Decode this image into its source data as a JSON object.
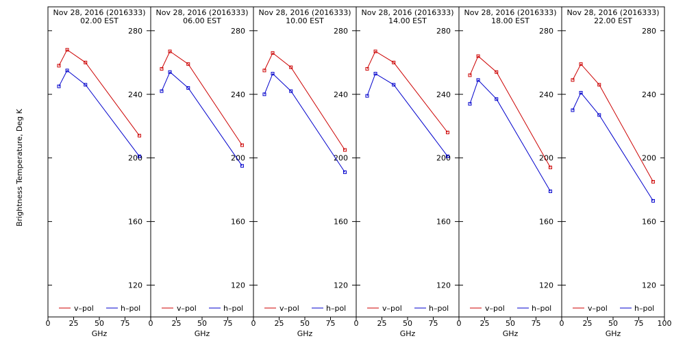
{
  "figure": {
    "ylabel": "Brightness Temperature, Deg K",
    "xlabel": "GHz",
    "legend": {
      "v_label": "v–pol",
      "h_label": "h–pol"
    },
    "colors": {
      "v": "#cc0000",
      "h": "#0000cc",
      "axis": "#000000"
    }
  },
  "chart_data": [
    {
      "type": "line",
      "title": "Nov 28, 2016 (2016333)",
      "subtitle": "02.00 EST",
      "xlim": [
        0,
        100
      ],
      "ylim": [
        100,
        295
      ],
      "xticks": [
        0,
        25,
        50,
        75
      ],
      "xtick_labels": [
        "0",
        "25",
        "50",
        "75"
      ],
      "yticks": [
        120,
        160,
        200,
        240,
        280
      ],
      "ytick_labels": [
        "120",
        "160",
        "200",
        "240",
        "280"
      ],
      "x": [
        10.65,
        18.7,
        36.5,
        89.0
      ],
      "series": [
        {
          "name": "v–pol",
          "values": [
            258,
            268,
            260,
            214
          ]
        },
        {
          "name": "h–pol",
          "values": [
            245,
            255,
            246,
            201
          ]
        }
      ]
    },
    {
      "type": "line",
      "title": "Nov 28, 2016 (2016333)",
      "subtitle": "06.00 EST",
      "xlim": [
        0,
        100
      ],
      "ylim": [
        100,
        295
      ],
      "xticks": [
        0,
        25,
        50,
        75
      ],
      "xtick_labels": [
        "0",
        "25",
        "50",
        "75"
      ],
      "yticks": [
        120,
        160,
        200,
        240,
        280
      ],
      "ytick_labels": [
        "120",
        "160",
        "200",
        "240",
        "280"
      ],
      "x": [
        10.65,
        18.7,
        36.5,
        89.0
      ],
      "series": [
        {
          "name": "v–pol",
          "values": [
            256,
            267,
            259,
            208
          ]
        },
        {
          "name": "h–pol",
          "values": [
            242,
            254,
            244,
            195
          ]
        }
      ]
    },
    {
      "type": "line",
      "title": "Nov 28, 2016 (2016333)",
      "subtitle": "10.00 EST",
      "xlim": [
        0,
        100
      ],
      "ylim": [
        100,
        295
      ],
      "xticks": [
        0,
        25,
        50,
        75
      ],
      "xtick_labels": [
        "0",
        "25",
        "50",
        "75"
      ],
      "yticks": [
        120,
        160,
        200,
        240,
        280
      ],
      "ytick_labels": [
        "120",
        "160",
        "200",
        "240",
        "280"
      ],
      "x": [
        10.65,
        18.7,
        36.5,
        89.0
      ],
      "series": [
        {
          "name": "v–pol",
          "values": [
            255,
            266,
            257,
            205
          ]
        },
        {
          "name": "h–pol",
          "values": [
            240,
            253,
            242,
            191
          ]
        }
      ]
    },
    {
      "type": "line",
      "title": "Nov 28, 2016 (2016333)",
      "subtitle": "14.00 EST",
      "xlim": [
        0,
        100
      ],
      "ylim": [
        100,
        295
      ],
      "xticks": [
        0,
        25,
        50,
        75
      ],
      "xtick_labels": [
        "0",
        "25",
        "50",
        "75"
      ],
      "yticks": [
        120,
        160,
        200,
        240,
        280
      ],
      "ytick_labels": [
        "120",
        "160",
        "200",
        "240",
        "280"
      ],
      "x": [
        10.65,
        18.7,
        36.5,
        89.0
      ],
      "series": [
        {
          "name": "v–pol",
          "values": [
            256,
            267,
            260,
            216
          ]
        },
        {
          "name": "h–pol",
          "values": [
            239,
            253,
            246,
            201
          ]
        }
      ]
    },
    {
      "type": "line",
      "title": "Nov 28, 2016 (2016333)",
      "subtitle": "18.00 EST",
      "xlim": [
        0,
        100
      ],
      "ylim": [
        100,
        295
      ],
      "xticks": [
        0,
        25,
        50,
        75
      ],
      "xtick_labels": [
        "0",
        "25",
        "50",
        "75"
      ],
      "yticks": [
        120,
        160,
        200,
        240,
        280
      ],
      "ytick_labels": [
        "120",
        "160",
        "200",
        "240",
        "280"
      ],
      "x": [
        10.65,
        18.7,
        36.5,
        89.0
      ],
      "series": [
        {
          "name": "v–pol",
          "values": [
            252,
            264,
            254,
            194
          ]
        },
        {
          "name": "h–pol",
          "values": [
            234,
            249,
            237,
            179
          ]
        }
      ]
    },
    {
      "type": "line",
      "title": "Nov 28, 2016 (2016333)",
      "subtitle": "22.00 EST",
      "xlim": [
        0,
        100
      ],
      "ylim": [
        100,
        295
      ],
      "xticks": [
        0,
        25,
        50,
        75,
        100
      ],
      "xtick_labels": [
        "0",
        "25",
        "50",
        "75",
        "100"
      ],
      "yticks": [
        120,
        160,
        200,
        240,
        280
      ],
      "ytick_labels": [
        "120",
        "160",
        "200",
        "240",
        "280"
      ],
      "x": [
        10.65,
        18.7,
        36.5,
        89.0
      ],
      "series": [
        {
          "name": "v–pol",
          "values": [
            249,
            259,
            246,
            185
          ]
        },
        {
          "name": "h–pol",
          "values": [
            230,
            241,
            227,
            173
          ]
        }
      ]
    }
  ]
}
